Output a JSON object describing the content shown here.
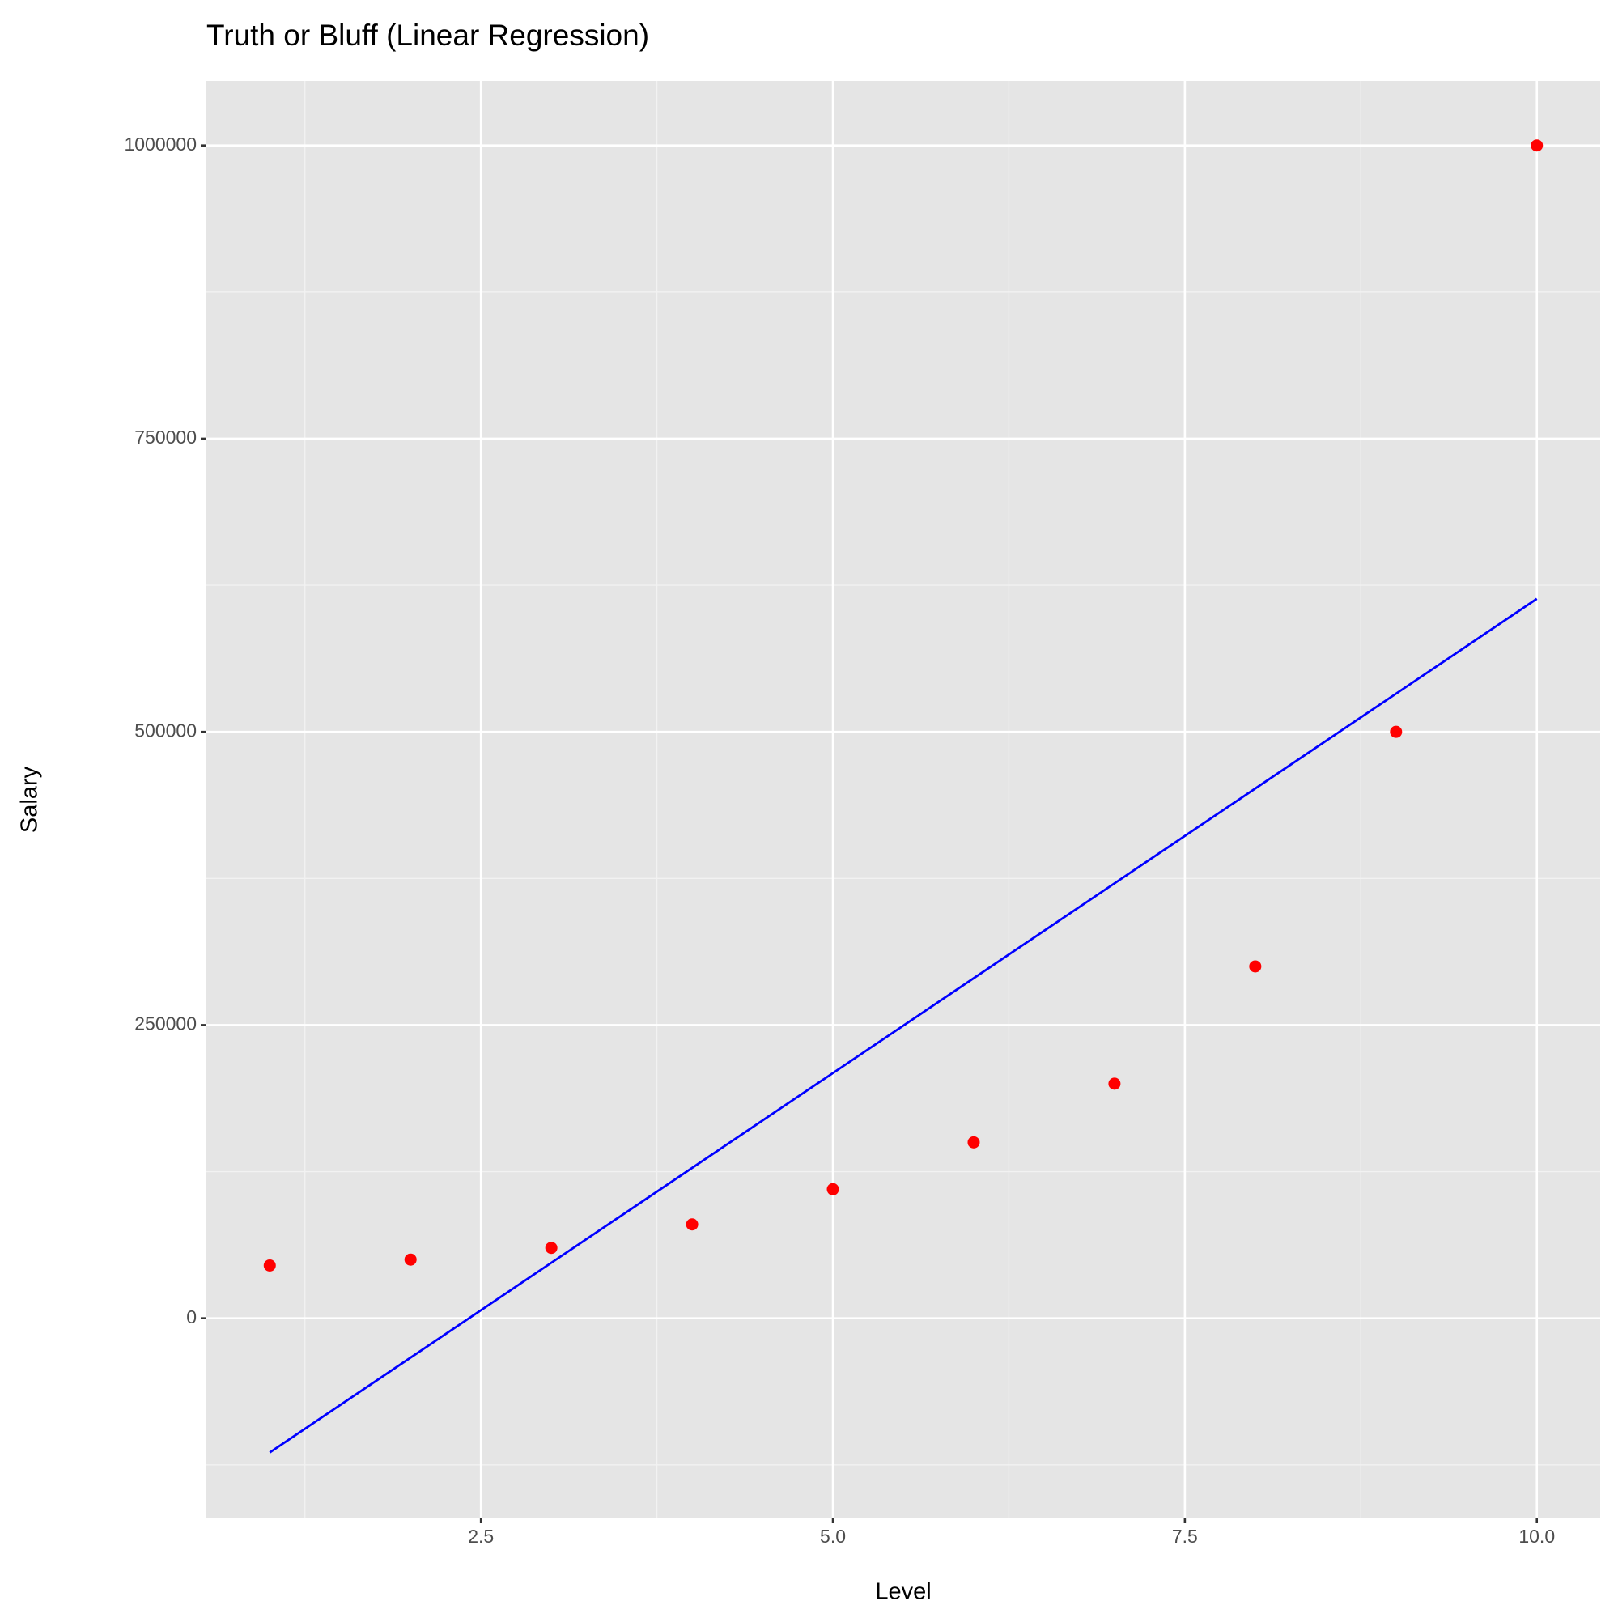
{
  "chart_data": {
    "type": "scatter",
    "title": "Truth or Bluff (Linear Regression)",
    "x_label": "Level",
    "y_label": "Salary",
    "x": [
      1,
      2,
      3,
      4,
      5,
      6,
      7,
      8,
      9,
      10
    ],
    "series": [
      {
        "style": "points",
        "color": "#ff0000",
        "values": [
          45000,
          50000,
          60000,
          80000,
          110000,
          150000,
          200000,
          300000,
          500000,
          1000000
        ]
      },
      {
        "style": "line",
        "color": "#0000ff",
        "values": [
          -114455,
          -33576,
          47303,
          128182,
          209061,
          289939,
          370818,
          451697,
          532576,
          613455
        ]
      }
    ],
    "xlim": [
      0.55,
      10.45
    ],
    "xticks": [
      {
        "value": 2.5,
        "label": "2.5"
      },
      {
        "value": 5,
        "label": "5.0"
      },
      {
        "value": 7.5,
        "label": "7.5"
      },
      {
        "value": 10,
        "label": "10.0"
      }
    ],
    "ylim": [
      -170000,
      1055000
    ],
    "yticks": [
      0,
      250000,
      500000,
      750000,
      1000000
    ],
    "grid": true
  }
}
